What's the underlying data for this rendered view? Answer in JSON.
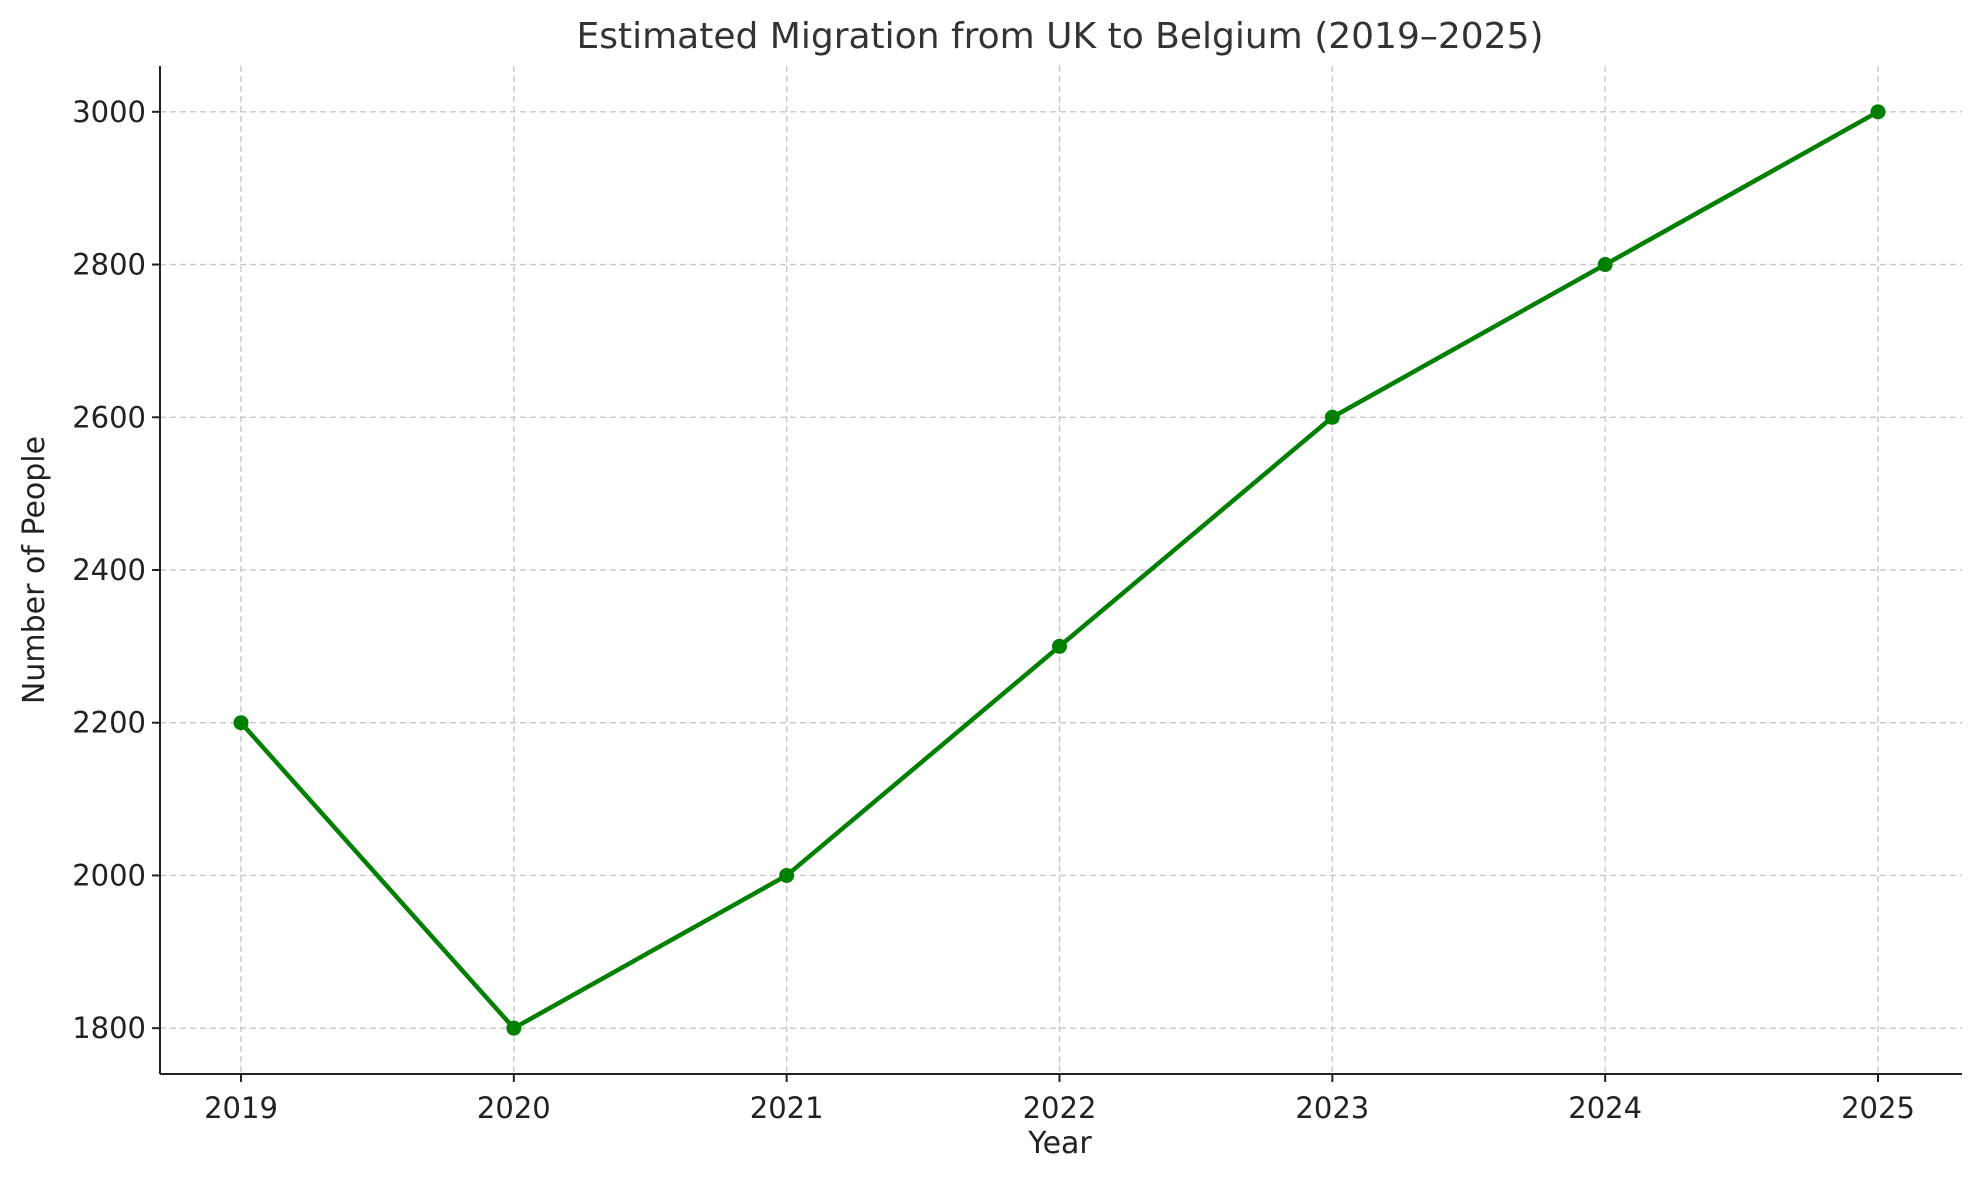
{
  "chart_data": {
    "type": "line",
    "title": "Estimated Migration from UK to Belgium (2019–2025)",
    "xlabel": "Year",
    "ylabel": "Number of People",
    "categories": [
      "2019",
      "2020",
      "2021",
      "2022",
      "2023",
      "2024",
      "2025"
    ],
    "yticks": [
      "1800",
      "2000",
      "2200",
      "2400",
      "2600",
      "2800",
      "3000"
    ],
    "ylim": [
      1740,
      3060
    ],
    "grid": true,
    "series": [
      {
        "values": [
          2200,
          1800,
          2000,
          2300,
          2600,
          2800,
          3000
        ],
        "color": "#008000"
      }
    ]
  }
}
